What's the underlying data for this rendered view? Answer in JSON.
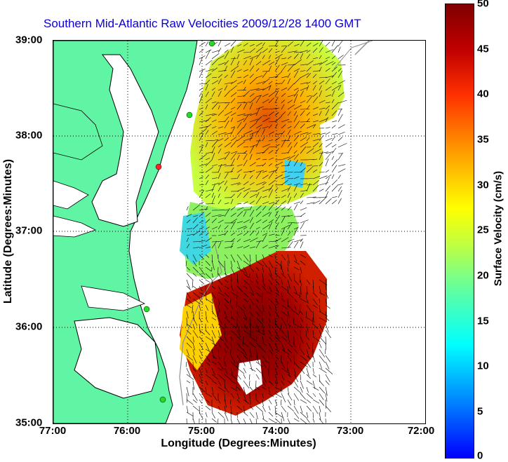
{
  "title": "Southern Mid-Atlantic Raw Velocities 2009/12/28 1400 GMT",
  "x_axis": {
    "label": "Longitude (Degrees:Minutes)",
    "ticks": [
      "77:00",
      "76:00",
      "75:00",
      "74:00",
      "73:00",
      "72:00"
    ]
  },
  "y_axis": {
    "label": "Latitude (Degrees:Minutes)",
    "ticks": [
      "39:00",
      "38:00",
      "37:00",
      "36:00",
      "35:00"
    ]
  },
  "colorbar": {
    "label": "Surface Velocity (cm/s)",
    "ticks": [
      "50",
      "45",
      "40",
      "35",
      "30",
      "25",
      "20",
      "15",
      "10",
      "5",
      "0"
    ],
    "range": [
      0,
      50
    ],
    "colormap": [
      "#0000ff",
      "#00ffff",
      "#ffff00",
      "#ff0000",
      "#800000"
    ]
  },
  "colors": {
    "land": "#5ff5a4",
    "coastline": "#000000",
    "title": "#0b00d6",
    "gridline": "#000000",
    "bathymetry": "#909090",
    "station_green": "#22dd22",
    "station_red": "#ff2222"
  },
  "map": {
    "lon_range": [
      -77,
      -72
    ],
    "lat_range": [
      35,
      39
    ],
    "grid": "dotted"
  }
}
